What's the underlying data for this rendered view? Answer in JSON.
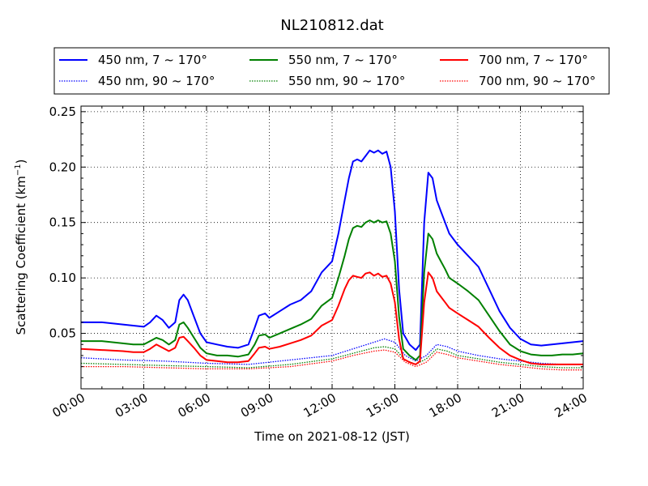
{
  "chart_data": {
    "type": "line",
    "title": "NL210812.dat",
    "xlabel": "Time on 2021-08-12 (JST)",
    "ylabel_main": "Scattering Coefficient (km",
    "ylabel_sup": "−1",
    "ylabel_end": ")",
    "xlim": [
      0,
      24
    ],
    "ylim": [
      0,
      0.255
    ],
    "xticks": [
      0,
      3,
      6,
      9,
      12,
      15,
      18,
      21,
      24
    ],
    "xtick_labels": [
      "00:00",
      "03:00",
      "06:00",
      "09:00",
      "12:00",
      "15:00",
      "18:00",
      "21:00",
      "24:00"
    ],
    "yticks": [
      0.05,
      0.1,
      0.15,
      0.2,
      0.25
    ],
    "ytick_labels": [
      "0.05",
      "0.10",
      "0.15",
      "0.20",
      "0.25"
    ],
    "grid": true,
    "legend_position": "top-center",
    "series": [
      {
        "name": "450 nm, 7 ~ 170°",
        "color": "#0000ff",
        "style": "solid",
        "x": [
          0,
          1,
          2,
          2.5,
          3,
          3.3,
          3.6,
          3.9,
          4.2,
          4.5,
          4.7,
          4.9,
          5.1,
          5.4,
          5.7,
          6,
          6.5,
          7,
          7.5,
          8,
          8.3,
          8.5,
          8.8,
          9,
          9.5,
          10,
          10.5,
          11,
          11.5,
          12,
          12.3,
          12.6,
          12.8,
          13,
          13.2,
          13.4,
          13.6,
          13.8,
          14,
          14.2,
          14.4,
          14.6,
          14.8,
          15,
          15.2,
          15.4,
          15.7,
          16,
          16.2,
          16.4,
          16.6,
          16.8,
          17,
          17.2,
          17.4,
          17.6,
          18,
          18.5,
          19,
          19.5,
          20,
          20.5,
          21,
          21.5,
          22,
          22.5,
          23,
          23.5,
          24
        ],
        "y": [
          0.06,
          0.06,
          0.058,
          0.057,
          0.056,
          0.06,
          0.066,
          0.062,
          0.055,
          0.06,
          0.08,
          0.085,
          0.08,
          0.065,
          0.05,
          0.042,
          0.04,
          0.038,
          0.037,
          0.04,
          0.055,
          0.066,
          0.068,
          0.064,
          0.07,
          0.076,
          0.08,
          0.088,
          0.105,
          0.115,
          0.14,
          0.17,
          0.19,
          0.205,
          0.207,
          0.205,
          0.21,
          0.215,
          0.213,
          0.215,
          0.212,
          0.214,
          0.2,
          0.16,
          0.09,
          0.05,
          0.04,
          0.035,
          0.04,
          0.15,
          0.195,
          0.19,
          0.17,
          0.16,
          0.15,
          0.14,
          0.13,
          0.12,
          0.11,
          0.09,
          0.07,
          0.055,
          0.045,
          0.04,
          0.039,
          0.04,
          0.041,
          0.042,
          0.043
        ]
      },
      {
        "name": "550 nm, 7 ~ 170°",
        "color": "#008000",
        "style": "solid",
        "x": [
          0,
          1,
          2,
          2.5,
          3,
          3.3,
          3.6,
          3.9,
          4.2,
          4.5,
          4.7,
          4.9,
          5.1,
          5.4,
          5.7,
          6,
          6.5,
          7,
          7.5,
          8,
          8.3,
          8.5,
          8.8,
          9,
          9.5,
          10,
          10.5,
          11,
          11.5,
          12,
          12.3,
          12.6,
          12.8,
          13,
          13.2,
          13.4,
          13.6,
          13.8,
          14,
          14.2,
          14.4,
          14.6,
          14.8,
          15,
          15.2,
          15.4,
          15.7,
          16,
          16.2,
          16.4,
          16.6,
          16.8,
          17,
          17.2,
          17.4,
          17.6,
          18,
          18.5,
          19,
          19.5,
          20,
          20.5,
          21,
          21.5,
          22,
          22.5,
          23,
          23.5,
          24
        ],
        "y": [
          0.043,
          0.043,
          0.041,
          0.04,
          0.04,
          0.043,
          0.046,
          0.044,
          0.04,
          0.044,
          0.058,
          0.06,
          0.055,
          0.046,
          0.037,
          0.032,
          0.03,
          0.03,
          0.029,
          0.031,
          0.04,
          0.048,
          0.049,
          0.046,
          0.05,
          0.054,
          0.058,
          0.063,
          0.075,
          0.082,
          0.1,
          0.12,
          0.135,
          0.145,
          0.147,
          0.146,
          0.15,
          0.152,
          0.15,
          0.152,
          0.15,
          0.151,
          0.14,
          0.115,
          0.065,
          0.036,
          0.03,
          0.026,
          0.03,
          0.105,
          0.14,
          0.135,
          0.122,
          0.115,
          0.108,
          0.1,
          0.095,
          0.088,
          0.08,
          0.066,
          0.052,
          0.04,
          0.034,
          0.031,
          0.03,
          0.03,
          0.031,
          0.031,
          0.032
        ]
      },
      {
        "name": "700 nm, 7 ~ 170°",
        "color": "#ff0000",
        "style": "solid",
        "x": [
          0,
          1,
          2,
          2.5,
          3,
          3.3,
          3.6,
          3.9,
          4.2,
          4.5,
          4.7,
          4.9,
          5.1,
          5.4,
          5.7,
          6,
          6.5,
          7,
          7.5,
          8,
          8.3,
          8.5,
          8.8,
          9,
          9.5,
          10,
          10.5,
          11,
          11.5,
          12,
          12.3,
          12.6,
          12.8,
          13,
          13.2,
          13.4,
          13.6,
          13.8,
          14,
          14.2,
          14.4,
          14.6,
          14.8,
          15,
          15.2,
          15.4,
          15.7,
          16,
          16.2,
          16.4,
          16.6,
          16.8,
          17,
          17.2,
          17.4,
          17.6,
          18,
          18.5,
          19,
          19.5,
          20,
          20.5,
          21,
          21.5,
          22,
          22.5,
          23,
          23.5,
          24
        ],
        "y": [
          0.036,
          0.035,
          0.034,
          0.033,
          0.033,
          0.036,
          0.04,
          0.037,
          0.034,
          0.037,
          0.046,
          0.047,
          0.043,
          0.037,
          0.03,
          0.026,
          0.025,
          0.024,
          0.024,
          0.025,
          0.032,
          0.037,
          0.038,
          0.036,
          0.038,
          0.041,
          0.044,
          0.048,
          0.057,
          0.062,
          0.075,
          0.09,
          0.098,
          0.102,
          0.101,
          0.1,
          0.104,
          0.105,
          0.102,
          0.104,
          0.101,
          0.102,
          0.095,
          0.078,
          0.045,
          0.027,
          0.024,
          0.022,
          0.025,
          0.078,
          0.105,
          0.1,
          0.088,
          0.083,
          0.078,
          0.073,
          0.068,
          0.062,
          0.056,
          0.046,
          0.037,
          0.03,
          0.026,
          0.023,
          0.022,
          0.022,
          0.022,
          0.022,
          0.022
        ]
      },
      {
        "name": "450 nm, 90 ~ 170°",
        "color": "#0000ff",
        "style": "dotted",
        "x": [
          0,
          2,
          4,
          6,
          8,
          10,
          12,
          13,
          14,
          14.5,
          15,
          15.5,
          16,
          16.5,
          17,
          17.5,
          18,
          19,
          20,
          21,
          22,
          23,
          24
        ],
        "y": [
          0.028,
          0.026,
          0.025,
          0.023,
          0.022,
          0.026,
          0.03,
          0.036,
          0.042,
          0.045,
          0.042,
          0.03,
          0.025,
          0.03,
          0.04,
          0.038,
          0.034,
          0.03,
          0.027,
          0.025,
          0.023,
          0.022,
          0.022
        ]
      },
      {
        "name": "550 nm, 90 ~ 170°",
        "color": "#008000",
        "style": "dotted",
        "x": [
          0,
          2,
          4,
          6,
          8,
          10,
          12,
          13,
          14,
          14.5,
          15,
          15.5,
          16,
          16.5,
          17,
          17.5,
          18,
          19,
          20,
          21,
          22,
          23,
          24
        ],
        "y": [
          0.023,
          0.022,
          0.021,
          0.02,
          0.019,
          0.022,
          0.027,
          0.032,
          0.037,
          0.038,
          0.036,
          0.026,
          0.022,
          0.027,
          0.036,
          0.034,
          0.03,
          0.027,
          0.024,
          0.022,
          0.02,
          0.019,
          0.019
        ]
      },
      {
        "name": "700 nm, 90 ~ 170°",
        "color": "#ff0000",
        "style": "dotted",
        "x": [
          0,
          2,
          4,
          6,
          8,
          10,
          12,
          13,
          14,
          14.5,
          15,
          15.5,
          16,
          16.5,
          17,
          17.5,
          18,
          19,
          20,
          21,
          22,
          23,
          24
        ],
        "y": [
          0.02,
          0.02,
          0.019,
          0.018,
          0.018,
          0.02,
          0.025,
          0.03,
          0.034,
          0.035,
          0.033,
          0.024,
          0.02,
          0.024,
          0.033,
          0.031,
          0.028,
          0.025,
          0.022,
          0.02,
          0.018,
          0.017,
          0.017
        ]
      }
    ]
  }
}
